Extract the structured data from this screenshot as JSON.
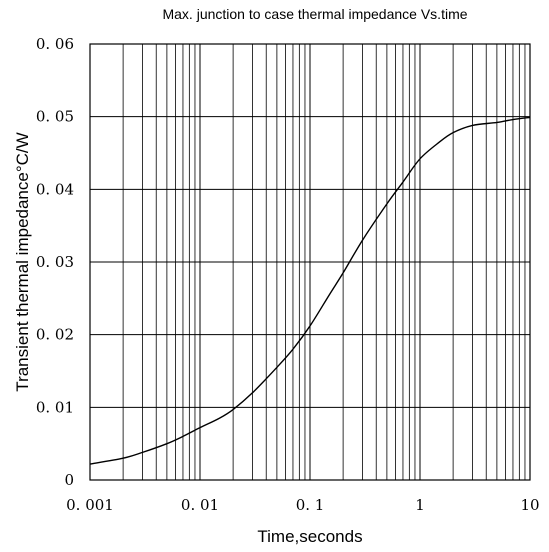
{
  "chart_data": {
    "type": "line",
    "title": "Max. junction to case thermal impedance Vs.time",
    "xlabel": "Time,seconds",
    "ylabel": "Transient thermal impedance°C/W",
    "x_scale": "log",
    "xlim": [
      0.001,
      10
    ],
    "ylim": [
      0,
      0.06
    ],
    "x_ticks": [
      0.001,
      0.01,
      0.1,
      1,
      10
    ],
    "x_tick_labels": [
      "0. 001",
      "0. 01",
      "0. 1",
      "1",
      "10"
    ],
    "y_ticks": [
      0,
      0.01,
      0.02,
      0.03,
      0.04,
      0.05,
      0.06
    ],
    "y_tick_labels": [
      "0",
      "0. 01",
      "0. 02",
      "0. 03",
      "0. 04",
      "0. 05",
      "0. 06"
    ],
    "grid": true,
    "series": [
      {
        "x": [
          0.001,
          0.002,
          0.003,
          0.005,
          0.007,
          0.01,
          0.015,
          0.02,
          0.03,
          0.05,
          0.07,
          0.1,
          0.15,
          0.2,
          0.3,
          0.5,
          0.7,
          1,
          1.5,
          2,
          3,
          5,
          7,
          10
        ],
        "y": [
          0.0022,
          0.003,
          0.0038,
          0.005,
          0.006,
          0.0072,
          0.0085,
          0.0097,
          0.012,
          0.0155,
          0.018,
          0.0212,
          0.0255,
          0.0285,
          0.033,
          0.038,
          0.041,
          0.0442,
          0.0465,
          0.0478,
          0.0488,
          0.0492,
          0.0496,
          0.0499
        ]
      }
    ]
  }
}
